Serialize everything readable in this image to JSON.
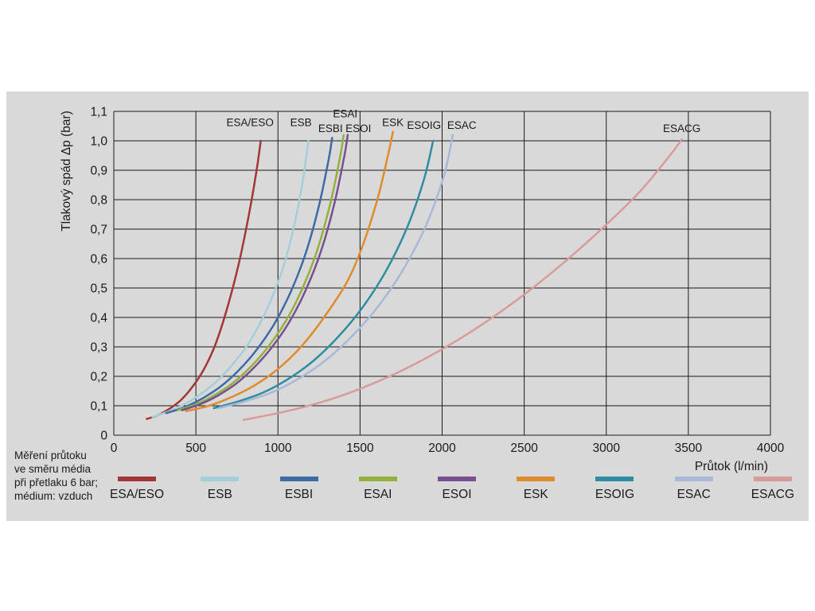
{
  "chart_data": {
    "type": "line",
    "title": "",
    "xlabel": "Průtok (l/min)",
    "ylabel": "Tlakový spád Δp (bar)",
    "xlim": [
      0,
      4000
    ],
    "ylim": [
      0,
      1.1
    ],
    "grid": true,
    "legend_position": "bottom",
    "background": "#d9d9d9",
    "grid_color": "#1b1b1b",
    "x_ticks": [
      0,
      500,
      1000,
      1500,
      2000,
      2500,
      3000,
      3500,
      4000
    ],
    "x_tick_labels": [
      "0",
      "500",
      "1000",
      "1500",
      "2000",
      "2500",
      "3000",
      "3500",
      "4000"
    ],
    "y_ticks": [
      0,
      0.1,
      0.2,
      0.3,
      0.4,
      0.5,
      0.6,
      0.7,
      0.8,
      0.9,
      1.0,
      1.1
    ],
    "y_tick_labels": [
      "0",
      "0,1",
      "0,2",
      "0,3",
      "0,4",
      "0,5",
      "0,6",
      "0,7",
      "0,8",
      "0,9",
      "1,0",
      "1,1"
    ],
    "series": [
      {
        "name": "ESA/ESO",
        "color": "#a33636",
        "label_at": {
          "x": 830,
          "y": 1.05
        },
        "points": [
          [
            200,
            0.055
          ],
          [
            270,
            0.068
          ],
          [
            340,
            0.09
          ],
          [
            410,
            0.12
          ],
          [
            480,
            0.165
          ],
          [
            550,
            0.225
          ],
          [
            620,
            0.31
          ],
          [
            690,
            0.43
          ],
          [
            760,
            0.58
          ],
          [
            820,
            0.74
          ],
          [
            870,
            0.9
          ],
          [
            895,
            1.0
          ]
        ]
      },
      {
        "name": "ESB",
        "color": "#a6cdda",
        "label_at": {
          "x": 1140,
          "y": 1.05
        },
        "points": [
          [
            235,
            0.062
          ],
          [
            330,
            0.08
          ],
          [
            430,
            0.105
          ],
          [
            530,
            0.14
          ],
          [
            630,
            0.185
          ],
          [
            730,
            0.245
          ],
          [
            830,
            0.32
          ],
          [
            930,
            0.425
          ],
          [
            1020,
            0.55
          ],
          [
            1090,
            0.69
          ],
          [
            1150,
            0.86
          ],
          [
            1185,
            1.0
          ]
        ]
      },
      {
        "name": "ESBI",
        "color": "#3c6ba5",
        "label_at": {
          "x": 1320,
          "y": 1.03
        },
        "points": [
          [
            320,
            0.075
          ],
          [
            430,
            0.095
          ],
          [
            540,
            0.125
          ],
          [
            650,
            0.165
          ],
          [
            760,
            0.22
          ],
          [
            870,
            0.29
          ],
          [
            980,
            0.38
          ],
          [
            1080,
            0.49
          ],
          [
            1170,
            0.62
          ],
          [
            1250,
            0.78
          ],
          [
            1310,
            0.94
          ],
          [
            1330,
            1.01
          ]
        ]
      },
      {
        "name": "ESAI",
        "color": "#93b13d",
        "label_at": {
          "x": 1410,
          "y": 1.08
        },
        "points": [
          [
            390,
            0.085
          ],
          [
            500,
            0.105
          ],
          [
            610,
            0.135
          ],
          [
            720,
            0.175
          ],
          [
            830,
            0.23
          ],
          [
            940,
            0.3
          ],
          [
            1050,
            0.39
          ],
          [
            1150,
            0.5
          ],
          [
            1240,
            0.63
          ],
          [
            1320,
            0.79
          ],
          [
            1380,
            0.95
          ],
          [
            1400,
            1.02
          ]
        ]
      },
      {
        "name": "ESOI",
        "color": "#7a4f8f",
        "label_at": {
          "x": 1490,
          "y": 1.03
        },
        "points": [
          [
            415,
            0.085
          ],
          [
            525,
            0.105
          ],
          [
            635,
            0.135
          ],
          [
            745,
            0.175
          ],
          [
            855,
            0.23
          ],
          [
            965,
            0.3
          ],
          [
            1075,
            0.39
          ],
          [
            1175,
            0.5
          ],
          [
            1265,
            0.63
          ],
          [
            1345,
            0.79
          ],
          [
            1405,
            0.95
          ],
          [
            1425,
            1.02
          ]
        ]
      },
      {
        "name": "ESK",
        "color": "#e08b2d",
        "label_at": {
          "x": 1700,
          "y": 1.05
        },
        "points": [
          [
            440,
            0.082
          ],
          [
            580,
            0.1
          ],
          [
            720,
            0.13
          ],
          [
            860,
            0.17
          ],
          [
            1000,
            0.225
          ],
          [
            1140,
            0.3
          ],
          [
            1280,
            0.4
          ],
          [
            1420,
            0.52
          ],
          [
            1520,
            0.65
          ],
          [
            1610,
            0.81
          ],
          [
            1670,
            0.95
          ],
          [
            1700,
            1.03
          ]
        ]
      },
      {
        "name": "ESOIG",
        "color": "#2f8da1",
        "label_at": {
          "x": 1890,
          "y": 1.04
        },
        "points": [
          [
            610,
            0.092
          ],
          [
            760,
            0.115
          ],
          [
            910,
            0.145
          ],
          [
            1060,
            0.19
          ],
          [
            1210,
            0.25
          ],
          [
            1360,
            0.33
          ],
          [
            1510,
            0.43
          ],
          [
            1660,
            0.56
          ],
          [
            1790,
            0.71
          ],
          [
            1890,
            0.87
          ],
          [
            1945,
            1.0
          ]
        ]
      },
      {
        "name": "ESAC",
        "color": "#a9b7d8",
        "label_at": {
          "x": 2120,
          "y": 1.04
        },
        "points": [
          [
            640,
            0.092
          ],
          [
            800,
            0.115
          ],
          [
            960,
            0.145
          ],
          [
            1120,
            0.19
          ],
          [
            1280,
            0.25
          ],
          [
            1440,
            0.33
          ],
          [
            1600,
            0.43
          ],
          [
            1760,
            0.56
          ],
          [
            1900,
            0.71
          ],
          [
            2010,
            0.88
          ],
          [
            2065,
            1.02
          ]
        ]
      },
      {
        "name": "ESACG",
        "color": "#d89b99",
        "label_at": {
          "x": 3460,
          "y": 1.03
        },
        "points": [
          [
            790,
            0.052
          ],
          [
            1000,
            0.075
          ],
          [
            1220,
            0.105
          ],
          [
            1440,
            0.145
          ],
          [
            1660,
            0.195
          ],
          [
            1880,
            0.255
          ],
          [
            2100,
            0.325
          ],
          [
            2320,
            0.405
          ],
          [
            2540,
            0.495
          ],
          [
            2760,
            0.595
          ],
          [
            2980,
            0.705
          ],
          [
            3200,
            0.825
          ],
          [
            3380,
            0.945
          ],
          [
            3460,
            1.005
          ]
        ]
      }
    ]
  },
  "measurement_note": {
    "lines": [
      "Měření průtoku",
      "ve směru média",
      "při přetlaku 6 bar;",
      "médium: vzduch"
    ]
  }
}
